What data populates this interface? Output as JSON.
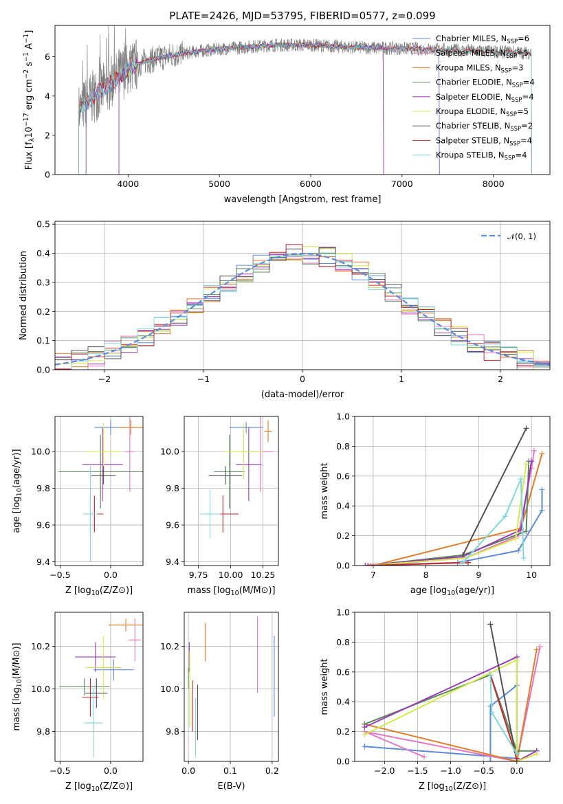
{
  "title": "PLATE=2426, MJD=53795, FIBERID=0577, z=0.099",
  "colors": {
    "chabrier_miles": "#5b8bd9",
    "salpeter_miles": "#e377c2",
    "kroupa_miles": "#e07b28",
    "chabrier_elodie": "#5a8a5a",
    "salpeter_elodie": "#9a3bb5",
    "kroupa_elodie": "#d4e84a",
    "chabrier_stelib": "#505050",
    "salpeter_stelib": "#c0282d",
    "kroupa_stelib": "#7edad8",
    "gaussian": "#5b8bd9"
  },
  "chart_data": [
    {
      "id": "spectrum",
      "type": "line",
      "title": "PLATE=2426, MJD=53795, FIBERID=0577, z=0.099",
      "xlabel": "wavelength [Angstrom, rest frame]",
      "ylabel_parts": [
        "Flux [f",
        "λ",
        "10",
        "−17",
        " erg cm",
        "−2",
        " s",
        "−1",
        " A",
        "−1",
        "]"
      ],
      "xlim": [
        3200,
        8620
      ],
      "ylim": [
        0,
        7.6
      ],
      "xticks": [
        "4000",
        "5000",
        "6000",
        "7000",
        "8000"
      ],
      "yticks": [
        "0",
        "2",
        "4",
        "6"
      ],
      "legend_location": "upper right",
      "legend": [
        {
          "base": "Chabrier MILES, N",
          "sub": "SSP",
          "tail": "=6",
          "color_key": "chabrier_miles"
        },
        {
          "base": "Salpeter MILES, N",
          "sub": "SSP",
          "tail": "=5",
          "color_key": "salpeter_miles"
        },
        {
          "base": "Kroupa MILES, N",
          "sub": "SSP",
          "tail": "=3",
          "color_key": "kroupa_miles"
        },
        {
          "base": "Chabrier ELODIE, N",
          "sub": "SSP",
          "tail": "=4",
          "color_key": "chabrier_elodie"
        },
        {
          "base": "Salpeter ELODIE, N",
          "sub": "SSP",
          "tail": "=4",
          "color_key": "salpeter_elodie"
        },
        {
          "base": "Kroupa ELODIE, N",
          "sub": "SSP",
          "tail": "=5",
          "color_key": "kroupa_elodie"
        },
        {
          "base": "Chabrier STELIB, N",
          "sub": "SSP",
          "tail": "=2",
          "color_key": "chabrier_stelib"
        },
        {
          "base": "Salpeter STELIB, N",
          "sub": "SSP",
          "tail": "=4",
          "color_key": "salpeter_stelib"
        },
        {
          "base": "Kroupa STELIB, N",
          "sub": "SSP",
          "tail": "=4",
          "color_key": "kroupa_stelib"
        }
      ],
      "continuum": {
        "x": [
          3450,
          3600,
          3800,
          4000,
          4200,
          4500,
          4800,
          5000,
          5300,
          5600,
          6000,
          6400,
          6800,
          7200,
          7500,
          7800,
          8100,
          8400
        ],
        "y": [
          3.2,
          3.9,
          4.6,
          5.4,
          5.8,
          6.1,
          6.3,
          6.4,
          6.5,
          6.6,
          6.6,
          6.5,
          6.45,
          6.4,
          6.35,
          6.3,
          6.25,
          6.2
        ]
      }
    },
    {
      "id": "residuals",
      "type": "histogram",
      "xlabel": "(data-model)/error",
      "ylabel": "Normed distribution",
      "xlim": [
        -2.5,
        2.5
      ],
      "ylim": [
        0,
        0.51
      ],
      "xticks": [
        "−2",
        "−1",
        "0",
        "1",
        "2"
      ],
      "yticks": [
        "0.0",
        "0.1",
        "0.2",
        "0.3",
        "0.4",
        "0.5"
      ],
      "grid": true,
      "legend_location": "upper right",
      "legend_label": "𝒩(0, 1)",
      "gaussian": {
        "mean": 0,
        "sigma": 1
      }
    },
    {
      "id": "age-vs-z",
      "type": "errorbar",
      "xlabel": "Z [log10(Z/Z⊙)]",
      "ylabel": "age  [log10(age/yr)]",
      "xlim": [
        -0.55,
        0.32
      ],
      "ylim": [
        9.38,
        10.19
      ],
      "xticks": [
        "−0.5",
        "0.0"
      ],
      "yticks": [
        "9.4",
        "9.6",
        "9.8",
        "10.0"
      ],
      "grid": true,
      "points": [
        {
          "color_key": "chabrier_miles",
          "x": 0.0,
          "xerr": 0.16,
          "y": 10.13,
          "yerr": 0.04
        },
        {
          "color_key": "salpeter_miles",
          "x": 0.19,
          "xerr": 0.05,
          "y": 10.0,
          "yerr": 0.22
        },
        {
          "color_key": "kroupa_miles",
          "x": 0.2,
          "xerr": 0.12,
          "y": 10.13,
          "yerr": 0.04
        },
        {
          "color_key": "chabrier_elodie",
          "x": -0.1,
          "xerr": 0.42,
          "y": 9.89,
          "yerr": 0.2
        },
        {
          "color_key": "salpeter_elodie",
          "x": -0.08,
          "xerr": 0.2,
          "y": 9.93,
          "yerr": 0.2
        },
        {
          "color_key": "kroupa_elodie",
          "x": -0.07,
          "xerr": 0.17,
          "y": 10.0,
          "yerr": 0.15
        },
        {
          "color_key": "chabrier_stelib",
          "x": -0.07,
          "xerr": 0.12,
          "y": 9.87,
          "yerr": 0.05
        },
        {
          "color_key": "salpeter_stelib",
          "x": -0.16,
          "xerr": 0.09,
          "y": 9.66,
          "yerr": 0.1
        },
        {
          "color_key": "kroupa_stelib",
          "x": -0.2,
          "xerr": 0.07,
          "y": 9.66,
          "yerr": 0.26
        }
      ]
    },
    {
      "id": "age-vs-mass",
      "type": "errorbar",
      "xlabel": "mass [log10(M/M⊙)]",
      "xlim": [
        9.64,
        10.37
      ],
      "ylim": [
        9.38,
        10.19
      ],
      "xticks": [
        "9.75",
        "10.00",
        "10.25"
      ],
      "yticks": [
        "9.4",
        "9.6",
        "9.8",
        "10.0"
      ],
      "grid": true,
      "points": [
        {
          "color_key": "chabrier_miles",
          "x": 10.12,
          "xerr": 0.13,
          "y": 10.13,
          "yerr": 0.03
        },
        {
          "color_key": "salpeter_miles",
          "x": 10.23,
          "xerr": 0.1,
          "y": 10.0,
          "yerr": 0.22
        },
        {
          "color_key": "kroupa_miles",
          "x": 10.29,
          "xerr": 0.03,
          "y": 10.11,
          "yerr": 0.06
        },
        {
          "color_key": "chabrier_elodie",
          "x": 9.99,
          "xerr": 0.12,
          "y": 9.89,
          "yerr": 0.2
        },
        {
          "color_key": "salpeter_elodie",
          "x": 10.14,
          "xerr": 0.1,
          "y": 9.93,
          "yerr": 0.2
        },
        {
          "color_key": "kroupa_elodie",
          "x": 10.1,
          "xerr": 0.15,
          "y": 10.0,
          "yerr": 0.15
        },
        {
          "color_key": "chabrier_stelib",
          "x": 9.96,
          "xerr": 0.13,
          "y": 9.87,
          "yerr": 0.05
        },
        {
          "color_key": "salpeter_stelib",
          "x": 9.94,
          "xerr": 0.12,
          "y": 9.66,
          "yerr": 0.1
        },
        {
          "color_key": "kroupa_stelib",
          "x": 9.84,
          "xerr": 0.08,
          "y": 9.66,
          "yerr": 0.13
        }
      ]
    },
    {
      "id": "weight-vs-age",
      "type": "line",
      "xlabel": "age  [log10(age/yr)]",
      "ylabel": "mass weight",
      "xlim": [
        6.65,
        10.35
      ],
      "ylim": [
        0,
        1.0
      ],
      "xticks": [
        "7",
        "8",
        "9",
        "10"
      ],
      "yticks": [
        "0.0",
        "0.2",
        "0.4",
        "0.6",
        "0.8",
        "1.0"
      ],
      "grid": true,
      "series": [
        {
          "color_key": "chabrier_miles",
          "x": [
            6.85,
            8.6,
            9.75,
            10.2,
            10.2
          ],
          "y": [
            0.0,
            0.02,
            0.1,
            0.37,
            0.51
          ]
        },
        {
          "color_key": "salpeter_miles",
          "x": [
            6.95,
            8.75,
            9.75,
            10.0,
            10.05
          ],
          "y": [
            0.0,
            0.05,
            0.2,
            0.65,
            0.77
          ]
        },
        {
          "color_key": "kroupa_miles",
          "x": [
            7.0,
            9.8,
            10.2
          ],
          "y": [
            0.0,
            0.25,
            0.75
          ]
        },
        {
          "color_key": "chabrier_elodie",
          "x": [
            6.9,
            8.7,
            9.9,
            9.95
          ],
          "y": [
            0.0,
            0.07,
            0.23,
            0.7
          ]
        },
        {
          "color_key": "salpeter_elodie",
          "x": [
            6.85,
            8.7,
            9.8,
            10.0
          ],
          "y": [
            0.0,
            0.06,
            0.24,
            0.7
          ]
        },
        {
          "color_key": "kroupa_elodie",
          "x": [
            6.9,
            8.75,
            9.7,
            9.9
          ],
          "y": [
            0.0,
            0.05,
            0.18,
            0.68
          ]
        },
        {
          "color_key": "chabrier_stelib",
          "x": [
            8.7,
            9.9
          ],
          "y": [
            0.07,
            0.92
          ]
        },
        {
          "color_key": "salpeter_stelib",
          "x": [
            6.9,
            8.8
          ],
          "y": [
            0.0,
            0.02
          ]
        },
        {
          "color_key": "kroupa_stelib",
          "x": [
            8.7,
            9.5,
            9.8,
            9.85
          ],
          "y": [
            0.02,
            0.33,
            0.58,
            0.05
          ]
        }
      ]
    },
    {
      "id": "mass-vs-z",
      "type": "errorbar",
      "xlabel": "Z [log10(Z/Z⊙)]",
      "ylabel": "mass [log10(M/M⊙)]",
      "xlim": [
        -0.55,
        0.32
      ],
      "ylim": [
        9.66,
        10.36
      ],
      "xticks": [
        "−0.5",
        "0.0"
      ],
      "yticks": [
        "9.8",
        "10.0",
        "10.2"
      ],
      "grid": true,
      "points": [
        {
          "color_key": "chabrier_miles",
          "x": 0.03,
          "xerr": 0.2,
          "y": 10.09,
          "yerr": 0.05
        },
        {
          "color_key": "salpeter_miles",
          "x": 0.24,
          "xerr": 0.06,
          "y": 10.23,
          "yerr": 0.1
        },
        {
          "color_key": "kroupa_miles",
          "x": 0.15,
          "xerr": 0.17,
          "y": 10.3,
          "yerr": 0.03
        },
        {
          "color_key": "chabrier_elodie",
          "x": -0.26,
          "xerr": 0.25,
          "y": 10.01,
          "yerr": 0.04
        },
        {
          "color_key": "salpeter_elodie",
          "x": -0.15,
          "xerr": 0.2,
          "y": 10.15,
          "yerr": 0.07
        },
        {
          "color_key": "kroupa_elodie",
          "x": -0.07,
          "xerr": 0.18,
          "y": 10.1,
          "yerr": 0.15
        },
        {
          "color_key": "chabrier_stelib",
          "x": -0.14,
          "xerr": 0.11,
          "y": 9.98,
          "yerr": 0.07
        },
        {
          "color_key": "salpeter_stelib",
          "x": -0.2,
          "xerr": 0.08,
          "y": 9.96,
          "yerr": 0.09
        },
        {
          "color_key": "kroupa_stelib",
          "x": -0.17,
          "xerr": 0.09,
          "y": 9.84,
          "yerr": 0.16
        }
      ]
    },
    {
      "id": "mass-vs-ebv",
      "type": "errorbar",
      "xlabel": "E(B-V)",
      "xlim": [
        -0.01,
        0.215
      ],
      "ylim": [
        9.66,
        10.36
      ],
      "xticks": [
        "0.0",
        "0.1",
        "0.2"
      ],
      "yticks": [
        "9.8",
        "10.0",
        "10.2"
      ],
      "grid": true,
      "points": [
        {
          "color_key": "chabrier_miles",
          "x": 0.205,
          "xerr": 0.0,
          "y": 10.06,
          "yerr": 0.19
        },
        {
          "color_key": "salpeter_miles",
          "x": 0.165,
          "xerr": 0.0,
          "y": 10.16,
          "yerr": 0.18
        },
        {
          "color_key": "kroupa_miles",
          "x": 0.04,
          "xerr": 0.0,
          "y": 10.22,
          "yerr": 0.09
        },
        {
          "color_key": "chabrier_elodie",
          "x": 0.0,
          "xerr": 0.0,
          "y": 10.05,
          "yerr": 0.05
        },
        {
          "color_key": "salpeter_elodie",
          "x": 0.002,
          "xerr": 0.0,
          "y": 10.15,
          "yerr": 0.07
        },
        {
          "color_key": "kroupa_elodie",
          "x": 0.003,
          "xerr": 0.0,
          "y": 10.0,
          "yerr": 0.18
        },
        {
          "color_key": "chabrier_stelib",
          "x": 0.022,
          "xerr": 0.0,
          "y": 9.89,
          "yerr": 0.13
        },
        {
          "color_key": "salpeter_stelib",
          "x": 0.01,
          "xerr": 0.0,
          "y": 9.92,
          "yerr": 0.12
        },
        {
          "color_key": "kroupa_stelib",
          "x": 0.017,
          "xerr": 0.0,
          "y": 9.82,
          "yerr": 0.14
        }
      ]
    },
    {
      "id": "weight-vs-z",
      "type": "line",
      "xlabel": "Z [log10(Z/Z⊙)]",
      "ylabel": "mass weight",
      "xlim": [
        -2.45,
        0.5
      ],
      "ylim": [
        0,
        1.0
      ],
      "xticks": [
        "−2.0",
        "−1.5",
        "−1.0",
        "−0.5",
        "0.0"
      ],
      "yticks": [
        "0.0",
        "0.2",
        "0.4",
        "0.6",
        "0.8",
        "1.0"
      ],
      "grid": true,
      "series": [
        {
          "color_key": "chabrier_miles",
          "x": [
            -2.3,
            0.0,
            0.0,
            -0.4,
            -0.4
          ],
          "y": [
            0.1,
            0.02,
            0.51,
            0.37,
            0.0
          ]
        },
        {
          "color_key": "salpeter_miles",
          "x": [
            -1.4,
            -2.3,
            0.0,
            0.35
          ],
          "y": [
            0.03,
            0.2,
            0.0,
            0.77
          ]
        },
        {
          "color_key": "kroupa_miles",
          "x": [
            -2.3,
            0.0,
            0.3
          ],
          "y": [
            0.25,
            0.0,
            0.75
          ]
        },
        {
          "color_key": "chabrier_elodie",
          "x": [
            -2.3,
            -0.4,
            0.0,
            0.3
          ],
          "y": [
            0.25,
            0.58,
            0.07,
            0.07
          ]
        },
        {
          "color_key": "salpeter_elodie",
          "x": [
            -2.3,
            0.0,
            0.0,
            0.3
          ],
          "y": [
            0.23,
            0.7,
            0.0,
            0.07
          ]
        },
        {
          "color_key": "kroupa_elodie",
          "x": [
            -2.3,
            0.0,
            0.0,
            0.3
          ],
          "y": [
            0.18,
            0.68,
            0.0,
            0.05
          ]
        },
        {
          "color_key": "chabrier_stelib",
          "x": [
            -0.4,
            0.0
          ],
          "y": [
            0.92,
            0.0
          ]
        },
        {
          "color_key": "salpeter_stelib",
          "x": [
            -0.4,
            0.0
          ],
          "y": [
            0.58,
            0.02
          ]
        },
        {
          "color_key": "kroupa_stelib",
          "x": [
            -0.4,
            -0.38,
            0.0
          ],
          "y": [
            0.58,
            0.33,
            0.05
          ]
        }
      ]
    }
  ]
}
